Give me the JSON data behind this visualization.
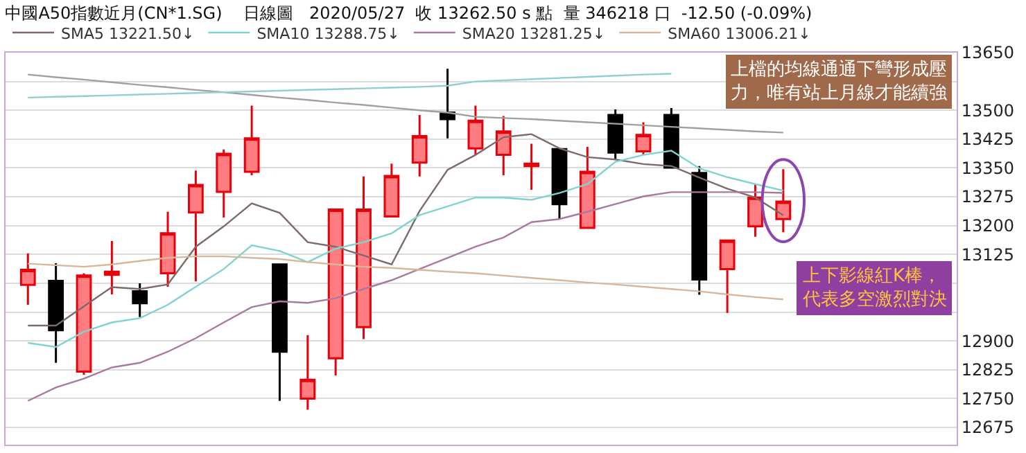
{
  "chart_data": {
    "type": "candlestick",
    "title": "中國A50指數近月(CN*1.SG)    日線圖   2020/05/27  收 13262.50 s 點  量 346218 口  -12.50 (-0.09%)",
    "categories": [
      null,
      null,
      null,
      null,
      null,
      null,
      null,
      null,
      null,
      null,
      null,
      null,
      null,
      null,
      null,
      null,
      null,
      null,
      null,
      null,
      null,
      null,
      null,
      null,
      null,
      null,
      null,
      null
    ],
    "ohlc": [
      [
        13046,
        13128,
        12994,
        13085
      ],
      [
        13056,
        13102,
        12843,
        12928
      ],
      [
        12820,
        13076,
        12812,
        13070
      ],
      [
        13072,
        13160,
        13021,
        13080
      ],
      [
        13029,
        13050,
        12962,
        12998
      ],
      [
        13076,
        13236,
        13041,
        13180
      ],
      [
        13234,
        13343,
        13055,
        13306
      ],
      [
        13288,
        13398,
        13221,
        13387
      ],
      [
        13340,
        13512,
        13331,
        13427
      ],
      [
        13099,
        13099,
        12744,
        12872
      ],
      [
        12750,
        12915,
        12721,
        12799
      ],
      [
        12855,
        13242,
        12810,
        13242
      ],
      [
        12936,
        13328,
        12905,
        13242
      ],
      [
        13224,
        13361,
        13221,
        13329
      ],
      [
        13364,
        13488,
        13328,
        13433
      ],
      [
        13494,
        13608,
        13427,
        13477
      ],
      [
        13401,
        13512,
        13384,
        13473
      ],
      [
        13384,
        13485,
        13331,
        13445
      ],
      [
        13355,
        13413,
        13293,
        13361
      ],
      [
        13399,
        13401,
        13218,
        13256
      ],
      [
        13194,
        13405,
        13192,
        13340
      ],
      [
        13488,
        13502,
        13374,
        13390
      ],
      [
        13393,
        13469,
        13384,
        13436
      ],
      [
        13488,
        13506,
        13351,
        13351
      ],
      [
        13337,
        13355,
        13020,
        13060
      ],
      [
        13087,
        13161,
        12973,
        13161
      ],
      [
        13198,
        13308,
        13171,
        13273
      ],
      [
        13217,
        13347,
        13183,
        13262.5
      ]
    ],
    "series": [
      {
        "name": "SMA5 13221.50↓",
        "type": "line",
        "color": "#7d6b6b",
        "values": [
          12940,
          12940,
          12990,
          13040,
          13035,
          13047,
          13145,
          13198,
          13258,
          13233,
          13157,
          13145,
          13122,
          13099,
          13238,
          13345,
          13384,
          13430,
          13438,
          13401,
          13378,
          13372,
          13360,
          13355,
          13325,
          13296,
          13273,
          13227
        ]
      },
      {
        "name": "SMA10 13288.75↓",
        "type": "line",
        "color": "#7fd4cf",
        "values": [
          12895,
          12884,
          12924,
          12948,
          12959,
          12994,
          13041,
          13087,
          13149,
          13134,
          13105,
          13140,
          13157,
          13180,
          13227,
          13250,
          13273,
          13273,
          13267,
          13285,
          13308,
          13366,
          13384,
          13395,
          13349,
          13326,
          13308,
          13291
        ]
      },
      {
        "name": "SMA20 13281.25↓",
        "type": "line",
        "color": "#a87aa0",
        "values": [
          12744,
          12779,
          12802,
          12831,
          12843,
          12872,
          12907,
          12948,
          12988,
          13003,
          12999,
          13011,
          13035,
          13058,
          13087,
          13116,
          13145,
          13169,
          13209,
          13217,
          13236,
          13256,
          13276,
          13287,
          13287,
          13287,
          13287,
          13285
        ]
      },
      {
        "name": "SMA60 13006.21↓",
        "type": "line",
        "color": "#d9b79a",
        "values": [
          13101,
          13097,
          13093,
          13099,
          13108,
          13116,
          13120,
          13120,
          13116,
          13113,
          13105,
          13099,
          13093,
          13090,
          13085,
          13080,
          13076,
          13070,
          13064,
          13058,
          13052,
          13047,
          13041,
          13035,
          13029,
          13021,
          13014,
          13008
        ]
      },
      {
        "type": "line",
        "color": "#a0a0a0",
        "values": [
          13593,
          13586,
          13580,
          13573,
          13566,
          13560,
          13553,
          13547,
          13540,
          13533,
          13527,
          13520,
          13514,
          13507,
          13500,
          13494,
          13483,
          13480,
          13477,
          13473,
          13469,
          13465,
          13461,
          13457,
          13453,
          13449,
          13445,
          13442
        ]
      },
      {
        "type": "line",
        "color": "#8fd0d0",
        "values": [
          13533,
          13535,
          13537,
          13539,
          13541,
          13543,
          13545,
          13547,
          13549,
          13551,
          13553,
          13555,
          13557,
          13559,
          13561,
          13564,
          13575,
          13578,
          13581,
          13584,
          13587,
          13590,
          13593,
          13595,
          null,
          null,
          null,
          null
        ]
      }
    ],
    "ylim": [
      12630,
      13650
    ],
    "yticks": [
      12675,
      12750,
      12825,
      12900,
      {
        "value": 12975,
        "label": null
      },
      {
        "value": 13050,
        "label": null
      },
      13125,
      13200,
      13275,
      13350,
      13425,
      13500,
      {
        "value": 13575,
        "label": null
      },
      13650
    ],
    "grid": "y",
    "legend": "top left",
    "tick_labels": "y",
    "annotations": [
      "上檔的均線通通下彎形成壓力，唯有站上月線才能續強",
      "上下影線紅K棒，代表多空激烈對決"
    ]
  }
}
